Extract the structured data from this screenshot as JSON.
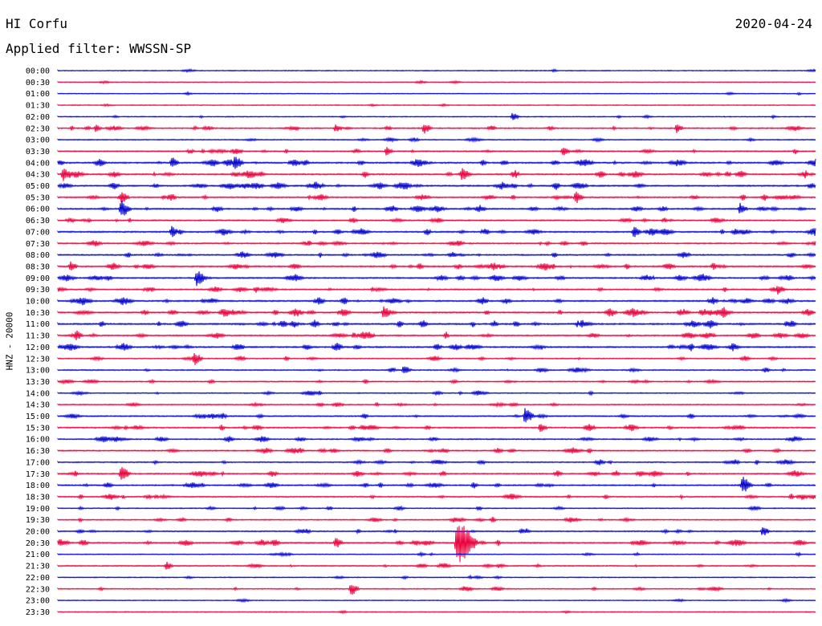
{
  "header": {
    "station": "HI Corfu",
    "date": "2020-04-24",
    "filter": "Applied filter: WWSSN-SP"
  },
  "colors": {
    "even_hour": "#0000cc",
    "odd_half_hour": "#e8003c",
    "background": "#ffffff"
  },
  "chart_data": {
    "type": "line",
    "title": "HI Corfu",
    "subtitle": "Applied filter: WWSSN-SP",
    "ylabel": "HNZ - 20000",
    "xlabel": "",
    "grid": false,
    "legend": "none",
    "time_labels": [
      "00:00",
      "00:30",
      "01:00",
      "01:30",
      "02:00",
      "02:30",
      "03:00",
      "03:30",
      "04:00",
      "04:30",
      "05:00",
      "05:30",
      "06:00",
      "06:30",
      "07:00",
      "07:30",
      "08:00",
      "08:30",
      "09:00",
      "09:30",
      "10:00",
      "10:30",
      "11:00",
      "11:30",
      "12:00",
      "12:30",
      "13:00",
      "13:30",
      "14:00",
      "14:30",
      "15:00",
      "15:30",
      "16:00",
      "16:30",
      "17:00",
      "17:30",
      "18:00",
      "18:30",
      "19:00",
      "19:30",
      "20:00",
      "20:30",
      "21:00",
      "21:30",
      "22:00",
      "22:30",
      "23:00",
      "23:30"
    ],
    "activity": [
      0.1,
      0.1,
      0.1,
      0.1,
      0.2,
      0.6,
      0.3,
      0.6,
      0.9,
      0.9,
      0.9,
      0.8,
      0.8,
      0.6,
      0.9,
      0.8,
      0.7,
      0.9,
      0.8,
      0.7,
      0.9,
      1.0,
      1.0,
      0.8,
      0.9,
      0.5,
      0.5,
      0.5,
      0.4,
      0.4,
      0.6,
      0.8,
      0.6,
      0.6,
      0.5,
      0.7,
      0.7,
      0.6,
      0.4,
      0.5,
      0.5,
      0.8,
      0.3,
      0.5,
      0.2,
      0.4,
      0.1,
      0.1
    ],
    "events": [
      {
        "label": "02:00",
        "minute": 18,
        "amplitude": 6
      },
      {
        "label": "02:30",
        "minute": 1.5,
        "amplitude": 5
      },
      {
        "label": "02:30",
        "minute": 11,
        "amplitude": 6
      },
      {
        "label": "02:30",
        "minute": 14.5,
        "amplitude": 8
      },
      {
        "label": "02:30",
        "minute": 24.5,
        "amplitude": 6
      },
      {
        "label": "03:30",
        "minute": 13,
        "amplitude": 6
      },
      {
        "label": "03:30",
        "minute": 20,
        "amplitude": 7
      },
      {
        "label": "04:00",
        "minute": 4.5,
        "amplitude": 8
      },
      {
        "label": "04:00",
        "minute": 7,
        "amplitude": 10
      },
      {
        "label": "04:30",
        "minute": 0.2,
        "amplitude": 9
      },
      {
        "label": "04:30",
        "minute": 16,
        "amplitude": 9
      },
      {
        "label": "05:30",
        "minute": 2.5,
        "amplitude": 9
      },
      {
        "label": "05:30",
        "minute": 20.5,
        "amplitude": 9
      },
      {
        "label": "06:00",
        "minute": 2.5,
        "amplitude": 12
      },
      {
        "label": "06:00",
        "minute": 27,
        "amplitude": 8
      },
      {
        "label": "07:00",
        "minute": 4.5,
        "amplitude": 8
      },
      {
        "label": "07:00",
        "minute": 22.8,
        "amplitude": 8
      },
      {
        "label": "08:30",
        "minute": 0.5,
        "amplitude": 7
      },
      {
        "label": "09:00",
        "minute": 5.5,
        "amplitude": 11
      },
      {
        "label": "09:30",
        "minute": 28.5,
        "amplitude": 7
      },
      {
        "label": "10:30",
        "minute": 12.9,
        "amplitude": 9
      },
      {
        "label": "10:30",
        "minute": 26.3,
        "amplitude": 9
      },
      {
        "label": "11:30",
        "minute": 0.7,
        "amplitude": 8
      },
      {
        "label": "12:30",
        "minute": 5.4,
        "amplitude": 9
      },
      {
        "label": "13:00",
        "minute": 13.7,
        "amplitude": 7
      },
      {
        "label": "15:00",
        "minute": 18.5,
        "amplitude": 11
      },
      {
        "label": "15:30",
        "minute": 19.1,
        "amplitude": 7
      },
      {
        "label": "17:30",
        "minute": 2.5,
        "amplitude": 11
      },
      {
        "label": "18:00",
        "minute": 27.1,
        "amplitude": 12
      },
      {
        "label": "20:00",
        "minute": 27.9,
        "amplitude": 7
      },
      {
        "label": "20:30",
        "minute": 11,
        "amplitude": 8
      },
      {
        "label": "20:30",
        "minute": 15.8,
        "amplitude": 32
      },
      {
        "label": "21:30",
        "minute": 4.3,
        "amplitude": 6
      },
      {
        "label": "22:30",
        "minute": 11.6,
        "amplitude": 9
      }
    ]
  }
}
